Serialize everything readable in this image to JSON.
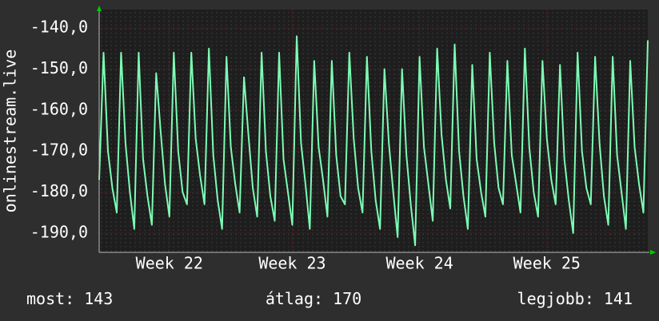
{
  "chart_data": {
    "type": "line",
    "y_label": "onlinestream.live",
    "x": [
      0,
      1,
      2,
      3,
      4,
      5,
      6,
      7,
      8,
      9,
      10,
      11,
      12,
      13,
      14,
      15,
      16,
      17,
      18,
      19,
      20,
      21,
      22,
      23,
      24,
      25,
      26,
      27,
      28,
      29,
      30,
      31,
      32,
      33,
      34,
      35,
      36,
      37,
      38,
      39,
      40,
      41,
      42,
      43,
      44,
      45,
      46,
      47,
      48,
      49,
      50,
      51,
      52,
      53,
      54,
      55,
      56,
      57,
      58,
      59,
      60,
      61,
      62,
      63,
      64,
      65,
      66,
      67,
      68,
      69,
      70,
      71,
      72,
      73,
      74,
      75,
      76,
      77,
      78,
      79,
      80,
      81,
      82,
      83,
      84,
      85,
      86,
      87,
      88,
      89,
      90,
      91,
      92,
      93,
      94,
      95,
      96,
      97,
      98,
      99,
      100,
      101,
      102,
      103,
      104,
      105,
      106,
      107,
      108,
      109,
      110,
      111,
      112,
      113,
      114,
      115,
      116,
      117,
      118,
      119,
      120,
      121,
      122,
      123,
      124,
      125
    ],
    "series": [
      {
        "color": "#7dfcb4",
        "values": [
          -177,
          -146,
          -170,
          -179,
          -185,
          -146,
          -168,
          -180,
          -189,
          -146,
          -172,
          -181,
          -188,
          -151,
          -165,
          -178,
          -186,
          -146,
          -170,
          -180,
          -183,
          -146,
          -167,
          -176,
          -183,
          -145,
          -171,
          -182,
          -189,
          -147,
          -169,
          -178,
          -185,
          -152,
          -166,
          -179,
          -186,
          -146,
          -170,
          -181,
          -187,
          -146,
          -172,
          -180,
          -188,
          -142,
          -168,
          -178,
          -189,
          -148,
          -169,
          -177,
          -186,
          -148,
          -171,
          -181,
          -183,
          -146,
          -167,
          -179,
          -185,
          -147,
          -170,
          -182,
          -189,
          -150,
          -168,
          -180,
          -191,
          -150,
          -171,
          -183,
          -193,
          -147,
          -169,
          -178,
          -187,
          -145,
          -166,
          -177,
          -184,
          -144,
          -170,
          -181,
          -189,
          -149,
          -172,
          -180,
          -186,
          -146,
          -168,
          -179,
          -183,
          -148,
          -171,
          -178,
          -185,
          -145,
          -169,
          -180,
          -186,
          -148,
          -167,
          -177,
          -183,
          -149,
          -172,
          -182,
          -190,
          -146,
          -170,
          -179,
          -183,
          -147,
          -168,
          -181,
          -188,
          -147,
          -171,
          -180,
          -189,
          -148,
          -169,
          -178,
          -185,
          -143
        ]
      }
    ],
    "xlim": [
      0,
      125
    ],
    "xticks": [
      {
        "value": 16,
        "label": "Week 22"
      },
      {
        "value": 44,
        "label": "Week 23"
      },
      {
        "value": 73,
        "label": "Week 24"
      },
      {
        "value": 102,
        "label": "Week 25"
      }
    ],
    "ylim": [
      -194.7,
      -135.5
    ],
    "yticks": [
      {
        "value": -190,
        "label": "-190,0"
      },
      {
        "value": -180,
        "label": "-180,0"
      },
      {
        "value": -170,
        "label": "-170,0"
      },
      {
        "value": -160,
        "label": "-160,0"
      },
      {
        "value": -150,
        "label": "-150,0"
      },
      {
        "value": -140,
        "label": "-140,0"
      }
    ],
    "grid": true,
    "stats": [
      {
        "label": "most:",
        "value": 143
      },
      {
        "label": "átlag:",
        "value": 170
      },
      {
        "label": "legjobb:",
        "value": 141
      }
    ]
  }
}
